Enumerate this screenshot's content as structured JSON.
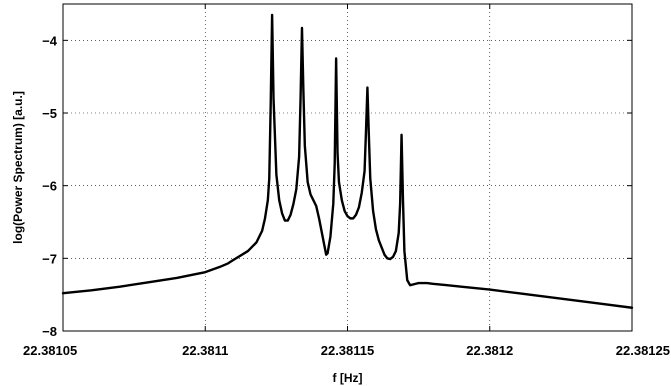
{
  "chart_data": {
    "type": "line",
    "title": "",
    "xlabel": "f [Hz]",
    "ylabel": "log(Power Spectrum) [a.u.]",
    "xlim": [
      22.38105,
      22.38125
    ],
    "ylim": [
      -8,
      -3.5
    ],
    "grid": true,
    "x_ticks": [
      22.38105,
      22.3811,
      22.38115,
      22.3812,
      22.38125
    ],
    "x_tick_labels": [
      "22.38105",
      "22.3811",
      "22.38115",
      "22.3812",
      "22.38125"
    ],
    "y_ticks": [
      -8,
      -7,
      -6,
      -5,
      -4
    ],
    "y_tick_labels": [
      "−8",
      "−7",
      "−6",
      "−5",
      "−4"
    ],
    "series": [
      {
        "color": "#000000",
        "x": [
          22.38105,
          22.38106,
          22.38107,
          22.38108,
          22.38109,
          22.3811,
          22.381105,
          22.381108,
          22.38111,
          22.381115,
          22.381118,
          22.38112,
          22.381121,
          22.381122,
          22.3811225,
          22.381123,
          22.3811235,
          22.381124,
          22.381125,
          22.381126,
          22.381127,
          22.381128,
          22.381129,
          22.38113,
          22.381131,
          22.381132,
          22.381133,
          22.3811335,
          22.381134,
          22.3811345,
          22.381135,
          22.381136,
          22.381137,
          22.381138,
          22.381139,
          22.38114,
          22.381141,
          22.381142,
          22.3811425,
          22.381143,
          22.381144,
          22.381145,
          22.3811455,
          22.381146,
          22.3811465,
          22.381147,
          22.381148,
          22.381149,
          22.38115,
          22.381151,
          22.381152,
          22.381153,
          22.381154,
          22.381155,
          22.381156,
          22.3811565,
          22.381157,
          22.3811575,
          22.381158,
          22.381159,
          22.38116,
          22.381161,
          22.381162,
          22.381163,
          22.381164,
          22.381165,
          22.381166,
          22.381167,
          22.381168,
          22.3811685,
          22.381169,
          22.3811695,
          22.38117,
          22.381171,
          22.381172,
          22.381173,
          22.381174,
          22.381175,
          22.381176,
          22.381178,
          22.38118,
          22.381185,
          22.38119,
          22.3812,
          22.38121,
          22.38122,
          22.38123,
          22.38124,
          22.38125
        ],
        "values": [
          -7.48,
          -7.44,
          -7.39,
          -7.33,
          -7.27,
          -7.19,
          -7.12,
          -7.07,
          -7.02,
          -6.9,
          -6.78,
          -6.62,
          -6.45,
          -6.2,
          -5.9,
          -4.9,
          -3.65,
          -4.8,
          -5.85,
          -6.2,
          -6.38,
          -6.48,
          -6.48,
          -6.4,
          -6.25,
          -6.05,
          -5.6,
          -4.8,
          -3.83,
          -4.7,
          -5.45,
          -5.95,
          -6.12,
          -6.2,
          -6.28,
          -6.45,
          -6.65,
          -6.85,
          -6.95,
          -6.93,
          -6.7,
          -6.25,
          -5.7,
          -4.25,
          -5.55,
          -5.95,
          -6.2,
          -6.35,
          -6.42,
          -6.45,
          -6.45,
          -6.4,
          -6.3,
          -6.1,
          -5.8,
          -5.25,
          -4.65,
          -5.3,
          -5.9,
          -6.35,
          -6.6,
          -6.75,
          -6.85,
          -6.95,
          -7.0,
          -7.01,
          -6.98,
          -6.9,
          -6.65,
          -6.25,
          -5.3,
          -6.2,
          -6.9,
          -7.3,
          -7.37,
          -7.36,
          -7.35,
          -7.34,
          -7.34,
          -7.34,
          -7.35,
          -7.37,
          -7.39,
          -7.43,
          -7.48,
          -7.53,
          -7.58,
          -7.63,
          -7.68
        ]
      }
    ]
  }
}
